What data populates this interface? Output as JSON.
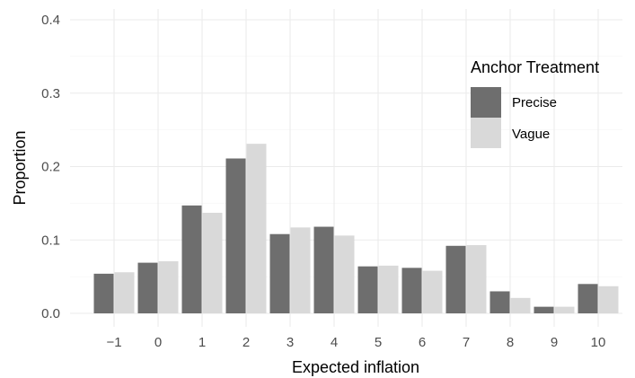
{
  "chart_data": {
    "type": "bar",
    "xlabel": "Expected inflation",
    "ylabel": "Proportion",
    "categories": [
      "−1",
      "0",
      "1",
      "2",
      "3",
      "4",
      "5",
      "6",
      "7",
      "8",
      "9",
      "10"
    ],
    "ylim": [
      0,
      0.4
    ],
    "yticks": [
      "0.0",
      "0.1",
      "0.2",
      "0.3",
      "0.4"
    ],
    "legend": {
      "title": "Anchor Treatment",
      "placement": "top-right"
    },
    "grid": true,
    "series": [
      {
        "name": "Precise",
        "color": "#6e6e6e",
        "values": [
          0.054,
          0.069,
          0.147,
          0.211,
          0.108,
          0.118,
          0.064,
          0.062,
          0.092,
          0.03,
          0.009,
          0.04
        ]
      },
      {
        "name": "Vague",
        "color": "#d9d9d9",
        "values": [
          0.056,
          0.071,
          0.137,
          0.231,
          0.117,
          0.106,
          0.065,
          0.058,
          0.093,
          0.021,
          0.009,
          0.037
        ]
      }
    ]
  }
}
